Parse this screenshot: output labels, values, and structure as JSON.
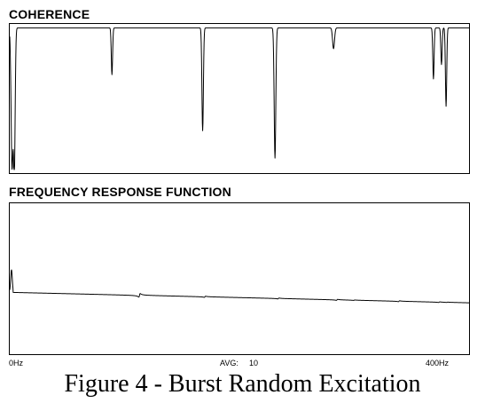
{
  "caption": "Figure 4 - Burst Random Excitation",
  "footer": {
    "x_start": "0Hz",
    "avg_label": "AVG:",
    "avg_value": "10",
    "x_end": "400Hz"
  },
  "chart_data": [
    {
      "type": "line",
      "title": "COHERENCE",
      "xlim": [
        0,
        400
      ],
      "ylim": [
        0,
        1
      ],
      "grid": false,
      "baseline": 0.985,
      "dips": [
        {
          "x": 2,
          "min": 0.02,
          "width": 1.2
        },
        {
          "x": 4,
          "min": 0.0,
          "width": 1.0
        },
        {
          "x": 89,
          "min": 0.66,
          "width": 0.8
        },
        {
          "x": 168,
          "min": 0.27,
          "width": 0.9
        },
        {
          "x": 231,
          "min": 0.08,
          "width": 1.0
        },
        {
          "x": 282,
          "min": 0.84,
          "width": 1.2
        },
        {
          "x": 369,
          "min": 0.63,
          "width": 0.8
        },
        {
          "x": 376,
          "min": 0.73,
          "width": 0.8
        },
        {
          "x": 380,
          "min": 0.44,
          "width": 0.8
        }
      ]
    },
    {
      "type": "line",
      "title": "FREQUENCY RESPONSE FUNCTION",
      "xlim": [
        0,
        400
      ],
      "ylim": [
        0,
        1
      ],
      "grid": false,
      "baseline": 0.41,
      "slope": -0.07,
      "modes": [
        {
          "x": 113,
          "amp": 0.014,
          "dir": 1
        },
        {
          "x": 170,
          "amp": 0.0045,
          "dir": 1
        },
        {
          "x": 234,
          "amp": 0.0035,
          "dir": 1
        },
        {
          "x": 285,
          "amp": 0.004,
          "dir": 1
        },
        {
          "x": 300,
          "amp": 0.0018,
          "dir": 1
        },
        {
          "x": 339,
          "amp": 0.0035,
          "dir": 1
        },
        {
          "x": 374,
          "amp": 0.0025,
          "dir": 1
        },
        {
          "x": 381,
          "amp": 0.0014,
          "dir": 1
        }
      ]
    }
  ]
}
